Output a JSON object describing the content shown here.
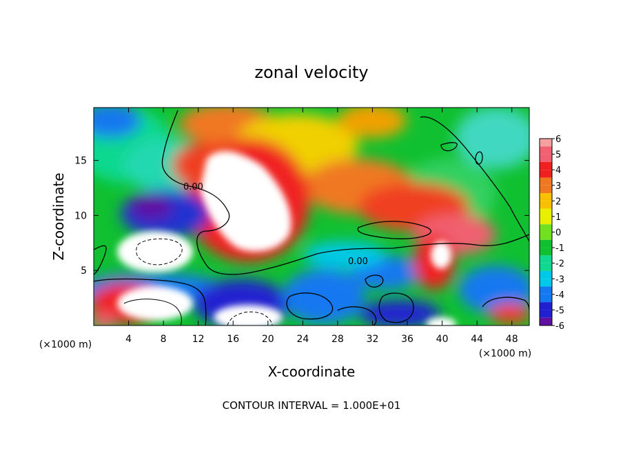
{
  "chart_data": {
    "type": "heatmap",
    "title": "zonal velocity",
    "xlabel": "X-coordinate",
    "ylabel": "Z-coordinate",
    "x_unit": "(×1000 m)",
    "x_unit_right": "(×1000 m)",
    "xlim": [
      0,
      50
    ],
    "ylim": [
      0,
      19.8
    ],
    "x_ticks": [
      4,
      8,
      12,
      16,
      20,
      24,
      28,
      32,
      36,
      40,
      44,
      48
    ],
    "y_ticks": [
      5,
      10,
      15
    ],
    "colorbar": {
      "range": [
        -6,
        6
      ],
      "levels": [
        6,
        5,
        4,
        3,
        2,
        1,
        0,
        -1,
        -2,
        -3,
        -4,
        -5,
        -6
      ],
      "colors": [
        "#f4a0a0",
        "#f06070",
        "#f02020",
        "#f07820",
        "#f8c000",
        "#e8f000",
        "#70e020",
        "#10c030",
        "#10d890",
        "#00c8e8",
        "#1478f0",
        "#2020d0",
        "#6010a0"
      ]
    },
    "contour_labels": [
      "0.00",
      "0.00"
    ],
    "footer": "CONTOUR INTERVAL = 1.000E+01"
  }
}
